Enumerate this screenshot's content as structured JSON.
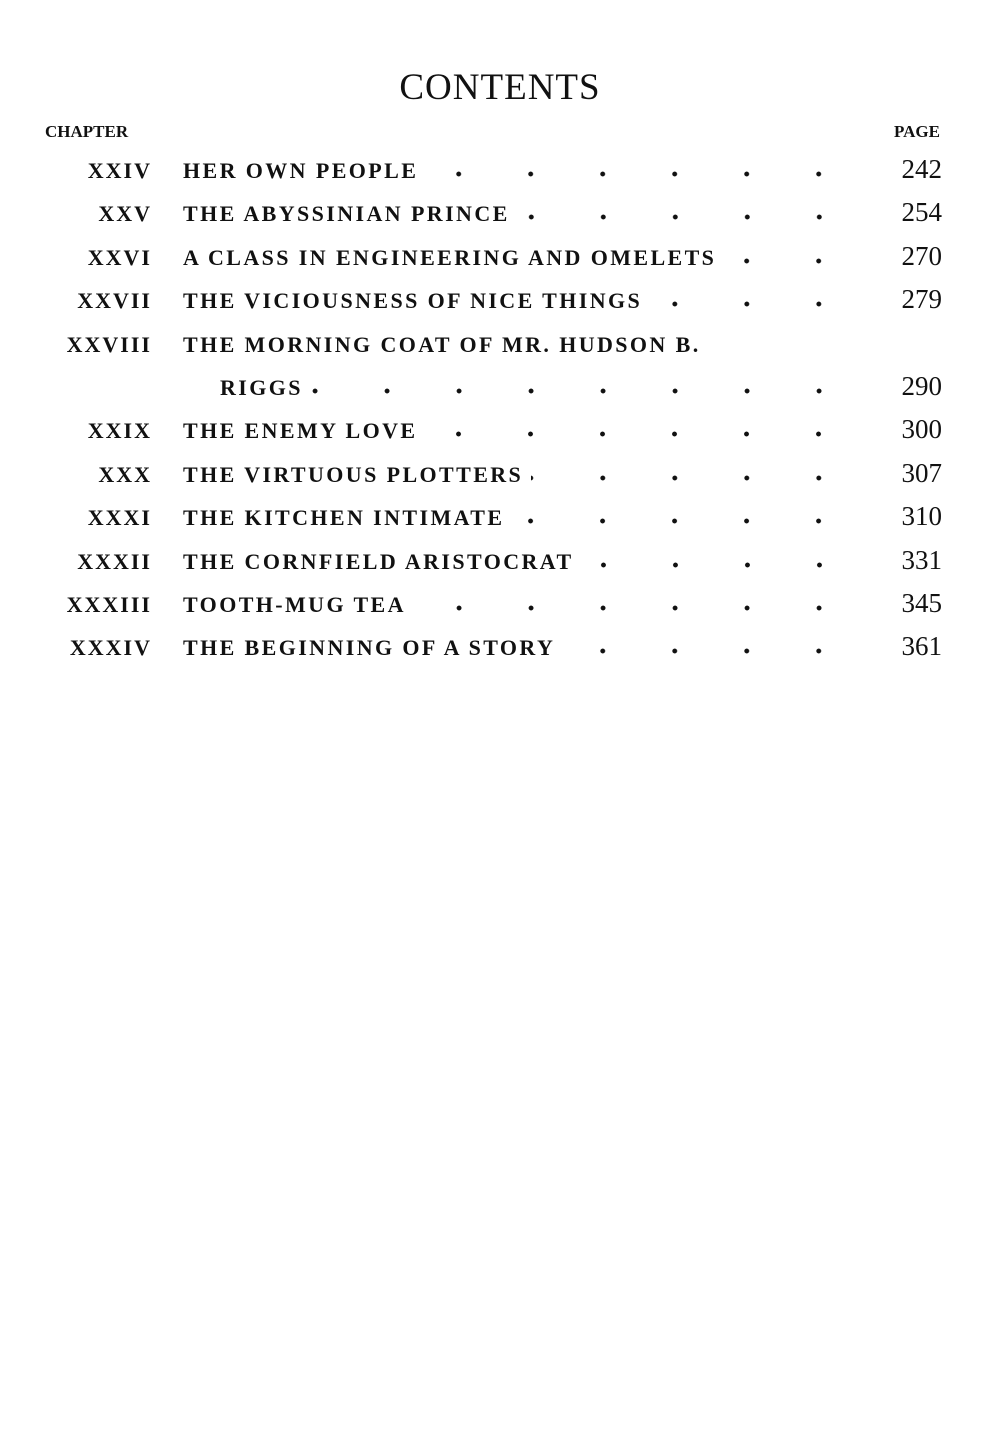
{
  "header": {
    "title": "CONTENTS",
    "chapter_label": "CHAPTER",
    "page_label": "PAGE"
  },
  "entries": [
    {
      "chapter": "XXIV",
      "title_lines": [
        "HER OWN PEOPLE"
      ],
      "page": "242"
    },
    {
      "chapter": "XXV",
      "title_lines": [
        "THE ABYSSINIAN PRINCE"
      ],
      "page": "254"
    },
    {
      "chapter": "XXVI",
      "title_lines": [
        "A CLASS IN ENGINEERING AND OMELETS"
      ],
      "page": "270"
    },
    {
      "chapter": "XXVII",
      "title_lines": [
        "THE VICIOUSNESS OF NICE THINGS"
      ],
      "page": "279"
    },
    {
      "chapter": "XXVIII",
      "title_lines": [
        "THE MORNING COAT OF MR. HUDSON B.",
        "RIGGS"
      ],
      "page": "290"
    },
    {
      "chapter": "XXIX",
      "title_lines": [
        "THE ENEMY LOVE"
      ],
      "page": "300"
    },
    {
      "chapter": "XXX",
      "title_lines": [
        "THE VIRTUOUS PLOTTERS"
      ],
      "page": "307"
    },
    {
      "chapter": "XXXI",
      "title_lines": [
        "THE KITCHEN INTIMATE"
      ],
      "page": "310"
    },
    {
      "chapter": "XXXII",
      "title_lines": [
        "THE CORNFIELD ARISTOCRAT"
      ],
      "page": "331"
    },
    {
      "chapter": "XXXIII",
      "title_lines": [
        "TOOTH-MUG TEA"
      ],
      "page": "345"
    },
    {
      "chapter": "XXXIV",
      "title_lines": [
        "THE BEGINNING OF A STORY"
      ],
      "page": "361"
    }
  ]
}
